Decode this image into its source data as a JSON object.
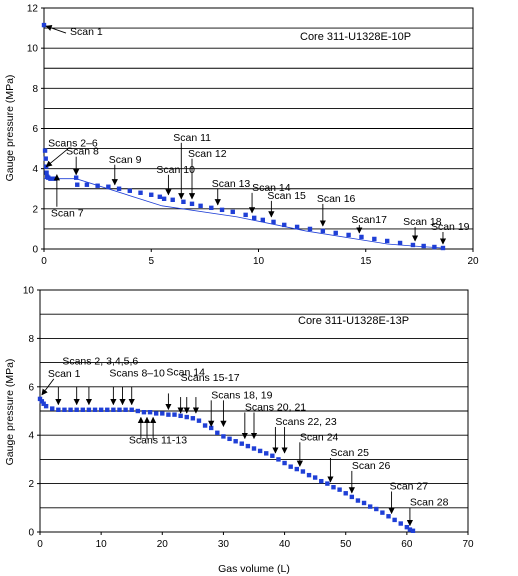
{
  "chart_data": [
    {
      "type": "scatter",
      "title": "Core 311-U1328E-10P",
      "xlabel": "",
      "ylabel": "Gauge pressure (MPa)",
      "xlim": [
        0,
        20
      ],
      "ylim": [
        0,
        12
      ],
      "xticks": [
        0,
        5,
        10,
        15,
        20
      ],
      "yticks": [
        0,
        2,
        4,
        6,
        8,
        10,
        12
      ],
      "grid": "horizontal",
      "marker_color": "#1f3fd6",
      "series": [
        {
          "points": [
            [
              0.0,
              11.15
            ],
            [
              0.05,
              4.9
            ],
            [
              0.08,
              4.5
            ],
            [
              0.1,
              4.1
            ],
            [
              0.12,
              3.8
            ],
            [
              0.15,
              3.6
            ],
            [
              0.2,
              3.55
            ],
            [
              0.3,
              3.5
            ],
            [
              0.5,
              3.5
            ],
            [
              1.5,
              3.55
            ],
            [
              1.55,
              3.2
            ],
            [
              2.0,
              3.2
            ],
            [
              2.5,
              3.15
            ],
            [
              3.0,
              3.1
            ],
            [
              3.5,
              3.0
            ],
            [
              4.0,
              2.9
            ],
            [
              4.5,
              2.8
            ],
            [
              5.0,
              2.7
            ],
            [
              5.4,
              2.6
            ],
            [
              5.6,
              2.5
            ],
            [
              6.0,
              2.45
            ],
            [
              6.5,
              2.35
            ],
            [
              6.9,
              2.25
            ],
            [
              7.3,
              2.15
            ],
            [
              7.8,
              2.05
            ],
            [
              8.3,
              1.95
            ],
            [
              8.8,
              1.85
            ],
            [
              9.4,
              1.7
            ],
            [
              9.8,
              1.55
            ],
            [
              10.2,
              1.45
            ],
            [
              10.7,
              1.35
            ],
            [
              11.2,
              1.2
            ],
            [
              11.8,
              1.1
            ],
            [
              12.4,
              1.0
            ],
            [
              13.0,
              0.9
            ],
            [
              13.6,
              0.8
            ],
            [
              14.2,
              0.7
            ],
            [
              14.8,
              0.6
            ],
            [
              15.4,
              0.5
            ],
            [
              16.0,
              0.4
            ],
            [
              16.6,
              0.3
            ],
            [
              17.2,
              0.2
            ],
            [
              17.7,
              0.15
            ],
            [
              18.2,
              0.1
            ],
            [
              18.6,
              0.05
            ]
          ],
          "connector_points": [
            [
              0.0,
              3.5
            ],
            [
              1.5,
              3.5
            ],
            [
              5.5,
              2.15
            ],
            [
              9.0,
              1.6
            ],
            [
              12.2,
              0.9
            ],
            [
              16.0,
              0.25
            ],
            [
              17.2,
              0.15
            ],
            [
              18.6,
              0.05
            ]
          ]
        }
      ],
      "annotations": [
        {
          "text": "Scan 1",
          "x": 0.0,
          "y": 11.15
        },
        {
          "text": "Scans 2–6",
          "x": 0.1,
          "y": 3.9
        },
        {
          "text": "Scan 7",
          "x": 0.6,
          "y": 3.5
        },
        {
          "text": "Scan 8",
          "x": 1.5,
          "y": 3.5
        },
        {
          "text": "Scan 9",
          "x": 3.3,
          "y": 3.0
        },
        {
          "text": "Scan 10",
          "x": 5.8,
          "y": 2.5
        },
        {
          "text": "Scan 11",
          "x": 6.4,
          "y": 2.3
        },
        {
          "text": "Scan 12",
          "x": 6.9,
          "y": 2.3
        },
        {
          "text": "Scan 13",
          "x": 8.1,
          "y": 2.0
        },
        {
          "text": "Scan 14",
          "x": 9.7,
          "y": 1.6
        },
        {
          "text": "Scan 15",
          "x": 10.6,
          "y": 1.4
        },
        {
          "text": "Scan 16",
          "x": 13.0,
          "y": 0.95
        },
        {
          "text": "Scan17",
          "x": 14.7,
          "y": 0.6
        },
        {
          "text": "Scan 18",
          "x": 17.3,
          "y": 0.2
        },
        {
          "text": "Scan 19",
          "x": 18.6,
          "y": 0.05
        }
      ]
    },
    {
      "type": "scatter",
      "title": "Core 311-U1328E-13P",
      "xlabel": "Gas volume (L)",
      "ylabel": "Gauge pressure (MPa)",
      "xlim": [
        0,
        70
      ],
      "ylim": [
        0,
        10
      ],
      "xticks": [
        0,
        10,
        20,
        30,
        40,
        50,
        60,
        70
      ],
      "yticks": [
        0,
        2,
        4,
        6,
        8,
        10
      ],
      "grid": "horizontal",
      "marker_color": "#1f3fd6",
      "series": [
        {
          "points": [
            [
              0.0,
              5.5
            ],
            [
              0.3,
              5.4
            ],
            [
              0.6,
              5.3
            ],
            [
              1.0,
              5.2
            ],
            [
              2,
              5.1
            ],
            [
              3,
              5.05
            ],
            [
              4,
              5.05
            ],
            [
              5,
              5.05
            ],
            [
              6,
              5.05
            ],
            [
              7,
              5.05
            ],
            [
              8,
              5.05
            ],
            [
              9,
              5.05
            ],
            [
              10,
              5.05
            ],
            [
              11,
              5.05
            ],
            [
              12,
              5.05
            ],
            [
              13,
              5.05
            ],
            [
              14,
              5.05
            ],
            [
              15,
              5.05
            ],
            [
              16,
              5.0
            ],
            [
              17,
              4.95
            ],
            [
              18,
              4.95
            ],
            [
              19,
              4.9
            ],
            [
              20,
              4.9
            ],
            [
              21,
              4.85
            ],
            [
              22,
              4.85
            ],
            [
              23,
              4.8
            ],
            [
              24,
              4.75
            ],
            [
              25,
              4.7
            ],
            [
              26,
              4.6
            ],
            [
              27,
              4.4
            ],
            [
              28,
              4.3
            ],
            [
              29,
              4.1
            ],
            [
              30,
              3.95
            ],
            [
              31,
              3.85
            ],
            [
              32,
              3.75
            ],
            [
              33,
              3.65
            ],
            [
              34,
              3.55
            ],
            [
              35,
              3.45
            ],
            [
              36,
              3.35
            ],
            [
              37,
              3.25
            ],
            [
              38,
              3.15
            ],
            [
              39,
              3.0
            ],
            [
              40,
              2.85
            ],
            [
              41,
              2.7
            ],
            [
              42,
              2.6
            ],
            [
              43,
              2.5
            ],
            [
              44,
              2.35
            ],
            [
              45,
              2.25
            ],
            [
              46,
              2.1
            ],
            [
              47,
              2.0
            ],
            [
              48,
              1.85
            ],
            [
              49,
              1.75
            ],
            [
              50,
              1.6
            ],
            [
              51,
              1.45
            ],
            [
              52,
              1.3
            ],
            [
              53,
              1.2
            ],
            [
              54,
              1.05
            ],
            [
              55,
              0.95
            ],
            [
              56,
              0.8
            ],
            [
              57,
              0.65
            ],
            [
              58,
              0.5
            ],
            [
              59,
              0.35
            ],
            [
              60,
              0.2
            ],
            [
              60.5,
              0.1
            ],
            [
              61,
              0.05
            ]
          ]
        }
      ],
      "annotations": [
        {
          "text": "Scan 1",
          "x": 0.3,
          "y": 5.5
        },
        {
          "text": "Scans 2, 3,4,5,6",
          "x": 2.5,
          "y": 5.1
        },
        {
          "text": "Scans 8–10",
          "x": 12.5,
          "y": 5.1
        },
        {
          "text": "Scans 11-13",
          "x": 17.0,
          "y": 4.9
        },
        {
          "text": "Scan 14",
          "x": 21.0,
          "y": 4.9
        },
        {
          "text": "Scans 15-17",
          "x": 24.0,
          "y": 4.75
        },
        {
          "text": "Scans 18, 19",
          "x": 29.0,
          "y": 4.2
        },
        {
          "text": "Scans 20, 21",
          "x": 33.5,
          "y": 3.7
        },
        {
          "text": "Scans 22, 23",
          "x": 38.5,
          "y": 3.1
        },
        {
          "text": "Scan 24",
          "x": 42.5,
          "y": 2.55
        },
        {
          "text": "Scan 25",
          "x": 47.5,
          "y": 1.9
        },
        {
          "text": "Scan 26",
          "x": 51.0,
          "y": 1.45
        },
        {
          "text": "Scan 27",
          "x": 57.5,
          "y": 0.6
        },
        {
          "text": "Scan 28",
          "x": 60.5,
          "y": 0.1
        }
      ]
    }
  ]
}
